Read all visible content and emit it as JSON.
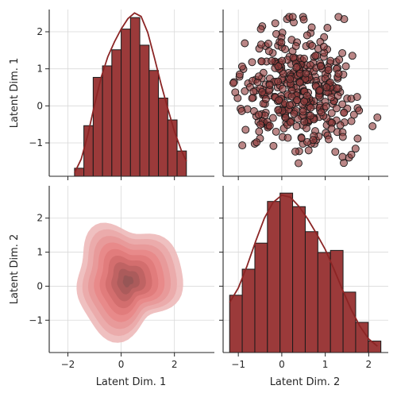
{
  "colors": {
    "bar_fill": "#9b3a3a",
    "bar_edge": "#1a1a1a",
    "kde_line": "#8b2525",
    "scatter_fill": "#8f3b3b",
    "scatter_edge": "#1a1a1a",
    "contour_levels": [
      "#edb9b9",
      "#eaa8a8",
      "#e89898",
      "#e88888",
      "#e07a7a",
      "#d16d6d",
      "#bd6262",
      "#a85a5a",
      "#955555"
    ]
  },
  "chart_data": {
    "type": "pairplot",
    "variables": [
      "Latent Dim. 1",
      "Latent Dim. 2"
    ],
    "grid": true,
    "panels": [
      {
        "name": "hist-dim1",
        "type": "bar",
        "x_variable": "Latent Dim. 1",
        "bin_edges": [
          -1.75,
          -1.4,
          -1.05,
          -0.7,
          -0.35,
          0.0,
          0.35,
          0.7,
          1.05,
          1.4,
          1.75,
          2.1,
          2.45
        ],
        "values": [
          0.7,
          4.4,
          8.6,
          9.6,
          11.0,
          12.8,
          13.8,
          11.4,
          9.2,
          6.8,
          4.9,
          2.2
        ],
        "kde": [
          [
            -1.75,
            0.3
          ],
          [
            -1.5,
            1.5
          ],
          [
            -1.25,
            3.6
          ],
          [
            -1.0,
            6.2
          ],
          [
            -0.75,
            8.6
          ],
          [
            -0.5,
            10.4
          ],
          [
            -0.25,
            11.7
          ],
          [
            0.0,
            12.8
          ],
          [
            0.25,
            13.7
          ],
          [
            0.5,
            14.2
          ],
          [
            0.75,
            13.9
          ],
          [
            1.0,
            12.5
          ],
          [
            1.25,
            10.3
          ],
          [
            1.5,
            8.0
          ],
          [
            1.75,
            5.9
          ],
          [
            2.0,
            3.9
          ],
          [
            2.25,
            2.3
          ],
          [
            2.45,
            1.3
          ]
        ],
        "ylim": [
          0,
          14.5
        ]
      },
      {
        "name": "scatter-dim2-vs-dim1",
        "type": "scatter",
        "x_variable": "Latent Dim. 2",
        "y_variable": "Latent Dim. 1",
        "n_points": 400,
        "x_range": [
          -1.2,
          2.2
        ],
        "y_range": [
          -1.7,
          2.4
        ]
      },
      {
        "name": "kde-dim1-vs-dim2",
        "type": "heatmap",
        "x_variable": "Latent Dim. 1",
        "y_variable": "Latent Dim. 2",
        "levels": 9,
        "center": [
          0.2,
          0.2
        ]
      },
      {
        "name": "hist-dim2",
        "type": "bar",
        "x_variable": "Latent Dim. 2",
        "bin_edges": [
          -1.2,
          -0.91,
          -0.62,
          -0.33,
          -0.04,
          0.25,
          0.54,
          0.83,
          1.12,
          1.41,
          1.7,
          1.99,
          2.28
        ],
        "values": [
          5.5,
          8.0,
          10.5,
          14.5,
          15.3,
          14.0,
          11.6,
          9.6,
          9.8,
          5.8,
          2.9,
          1.1
        ],
        "kde": [
          [
            -1.2,
            4.8
          ],
          [
            -1.0,
            6.2
          ],
          [
            -0.8,
            8.3
          ],
          [
            -0.6,
            10.7
          ],
          [
            -0.4,
            12.9
          ],
          [
            -0.2,
            14.4
          ],
          [
            0.0,
            15.1
          ],
          [
            0.2,
            14.9
          ],
          [
            0.4,
            14.0
          ],
          [
            0.6,
            12.8
          ],
          [
            0.8,
            11.4
          ],
          [
            1.0,
            9.9
          ],
          [
            1.2,
            8.0
          ],
          [
            1.4,
            6.0
          ],
          [
            1.6,
            4.1
          ],
          [
            1.8,
            2.5
          ],
          [
            2.0,
            1.3
          ],
          [
            2.2,
            0.6
          ]
        ],
        "ylim": [
          0,
          16
        ]
      }
    ],
    "axes": {
      "left_top": {
        "label": "Latent Dim. 1",
        "ticks": [
          "−1",
          "0",
          "1",
          "2"
        ],
        "tick_values": [
          -1,
          0,
          1,
          2
        ],
        "range": [
          -1.9,
          2.6
        ]
      },
      "left_bottom": {
        "label": "Latent Dim. 2",
        "ticks": [
          "−1",
          "0",
          "1",
          "2"
        ],
        "tick_values": [
          -1,
          0,
          1,
          2
        ],
        "range": [
          -1.95,
          2.95
        ]
      },
      "bottom_left": {
        "label": "Latent Dim. 1",
        "ticks": [
          "−2",
          "0",
          "2"
        ],
        "tick_values": [
          -2,
          0,
          2
        ],
        "range": [
          -2.7,
          3.5
        ]
      },
      "bottom_right": {
        "label": "Latent Dim. 2",
        "ticks": [
          "−1",
          "0",
          "1",
          "2"
        ],
        "tick_values": [
          -1,
          0,
          1,
          2
        ],
        "range": [
          -1.35,
          2.45
        ]
      }
    }
  }
}
